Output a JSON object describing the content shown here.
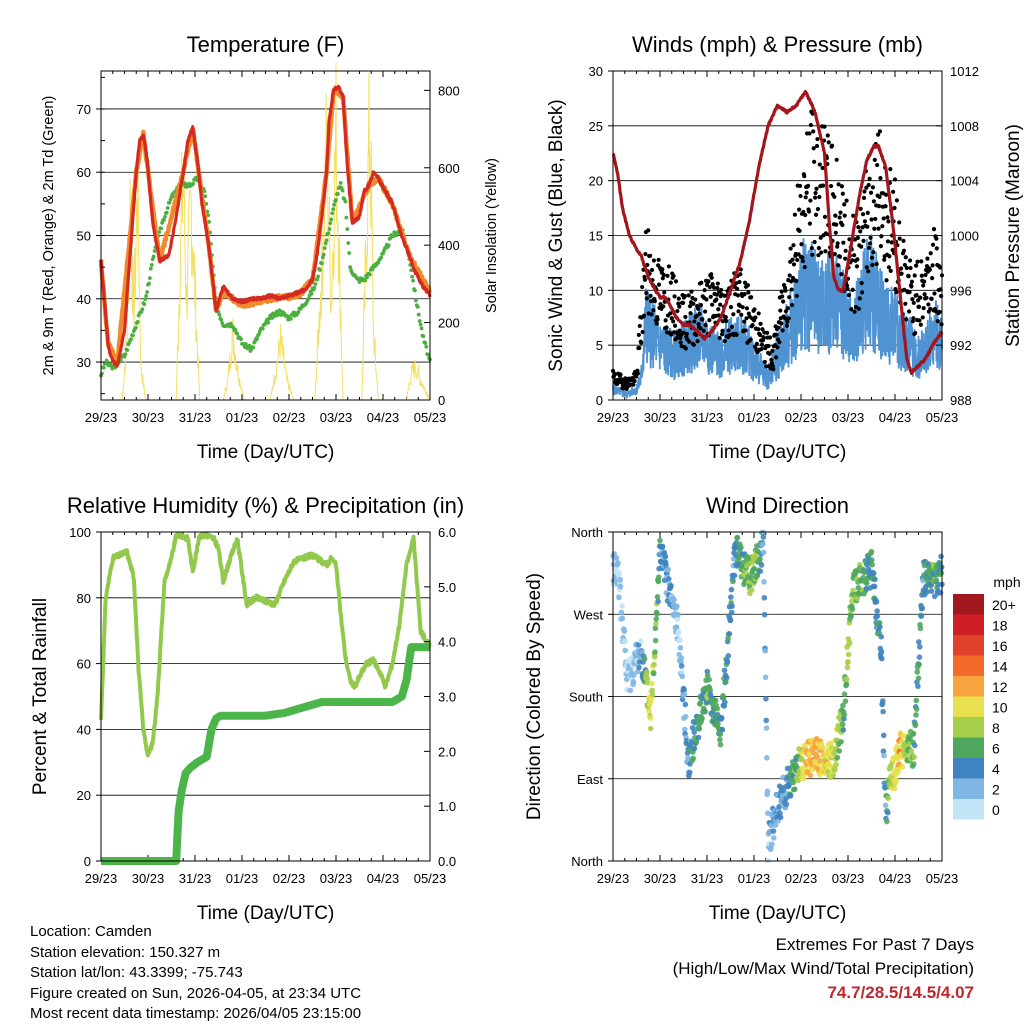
{
  "charts": {
    "temperature": {
      "title": "Temperature (F)",
      "xlabel": "Time (Day/UTC)",
      "ylabel_left": "2m & 9m T (Red, Orange) & 2m Td (Green)",
      "ylabel_right": "Solar Insolation (Yellow)",
      "yticks_left": [
        "30",
        "40",
        "50",
        "60",
        "70"
      ],
      "yticks_right": [
        "0",
        "200",
        "400",
        "600",
        "800"
      ],
      "xticks": [
        "29/23",
        "30/23",
        "31/23",
        "01/23",
        "02/23",
        "03/23",
        "04/23",
        "05/23"
      ]
    },
    "winds": {
      "title": "Winds (mph) & Pressure (mb)",
      "xlabel": "Time (Day/UTC)",
      "ylabel_left": "Sonic Wind & Gust (Blue, Black)",
      "ylabel_right": "Station Pressure (Maroon)",
      "yticks_left": [
        "0",
        "5",
        "10",
        "15",
        "20",
        "25",
        "30"
      ],
      "yticks_right": [
        "988",
        "992",
        "996",
        "1000",
        "1004",
        "1008",
        "1012"
      ],
      "xticks": [
        "29/23",
        "30/23",
        "31/23",
        "01/23",
        "02/23",
        "03/23",
        "04/23",
        "05/23"
      ]
    },
    "humidity": {
      "title": "Relative Humidity (%) & Precipitation (in)",
      "xlabel": "Time (Day/UTC)",
      "ylabel_left": "Percent & Total Rainfall",
      "yticks_left": [
        "0",
        "20",
        "40",
        "60",
        "80",
        "100"
      ],
      "yticks_right": [
        "0.0",
        "1.0",
        "2.0",
        "3.0",
        "4.0",
        "5.0",
        "6.0"
      ],
      "xticks": [
        "29/23",
        "30/23",
        "31/23",
        "01/23",
        "02/23",
        "03/23",
        "04/23",
        "05/23"
      ]
    },
    "direction": {
      "title": "Wind Direction",
      "xlabel": "Time (Day/UTC)",
      "ylabel_left": "Direction (Colored By Speed)",
      "yticks_left": [
        "North",
        "East",
        "South",
        "West",
        "North"
      ],
      "xticks": [
        "29/23",
        "30/23",
        "31/23",
        "01/23",
        "02/23",
        "03/23",
        "04/23",
        "05/23"
      ],
      "legend_title": "mph",
      "legend_labels": [
        "20+",
        "18",
        "16",
        "14",
        "12",
        "10",
        "8",
        "6",
        "4",
        "2",
        "0"
      ],
      "legend_colors": [
        "#a1181e",
        "#cf1f26",
        "#e0412a",
        "#f36b2b",
        "#f8a43f",
        "#e8e04e",
        "#a6cf4b",
        "#4fa75e",
        "#3f84c0",
        "#7fb6e3",
        "#c2e4f6"
      ]
    }
  },
  "colors": {
    "temp2m": "#d42a21",
    "temp9m": "#f08a2d",
    "dewpoint": "#4caf3f",
    "solar": "#f3e061",
    "gust": "#000000",
    "wind": "#4f93d2",
    "pressure": "#a3151c",
    "rh": "#92c94d",
    "precip": "#4cb54a"
  },
  "chart_data": [
    {
      "type": "line",
      "title": "Temperature (F)",
      "x_days": [
        0,
        7
      ],
      "ylim_left": [
        24,
        76
      ],
      "ylim_right": [
        0,
        850
      ],
      "series": [
        {
          "name": "2m T",
          "x": [
            0,
            0.07,
            0.15,
            0.2,
            0.27,
            0.35,
            0.5,
            0.65,
            0.75,
            0.82,
            0.9,
            0.98,
            1.1,
            1.25,
            1.45,
            1.6,
            1.75,
            1.85,
            1.95,
            2.05,
            2.15,
            2.3,
            2.45,
            2.6,
            2.8,
            3.0,
            3.2,
            3.4,
            3.6,
            3.8,
            4.0,
            4.2,
            4.35,
            4.5,
            4.6,
            4.7,
            4.8,
            4.85,
            4.95,
            5.05,
            5.15,
            5.25,
            5.35,
            5.5,
            5.6,
            5.7,
            5.8,
            5.9,
            6.05,
            6.2,
            6.4,
            6.55,
            6.7,
            6.85,
            7.0
          ],
          "values": [
            46,
            40,
            33,
            31,
            30,
            29.5,
            35,
            50,
            60,
            65,
            66,
            62,
            52,
            46,
            47,
            53,
            60,
            65,
            67,
            62,
            55,
            48,
            38,
            42,
            40,
            39.5,
            40,
            40,
            40.5,
            40,
            40.5,
            41,
            41.5,
            43,
            47,
            53,
            60,
            68,
            73,
            73.5,
            72,
            60,
            52,
            53,
            57,
            58,
            60,
            59,
            57,
            55,
            50,
            47,
            44,
            42,
            40.5
          ]
        },
        {
          "name": "9m T",
          "x": [
            0,
            0.15,
            0.35,
            0.75,
            0.9,
            1.25,
            1.75,
            1.95,
            2.3,
            2.45,
            2.6,
            3.0,
            3.6,
            4.2,
            4.5,
            4.8,
            4.95,
            5.15,
            5.35,
            5.7,
            5.9,
            6.2,
            6.55,
            7.0
          ],
          "values": [
            46,
            33,
            30,
            60,
            66,
            46,
            60,
            67,
            48,
            38,
            41,
            39,
            40,
            40.5,
            43,
            60,
            73,
            72,
            52,
            58,
            59,
            55,
            47,
            41
          ]
        },
        {
          "name": "2m Td",
          "x": [
            0,
            0.1,
            0.25,
            0.35,
            0.5,
            0.75,
            0.95,
            1.1,
            1.3,
            1.5,
            1.7,
            1.9,
            2.05,
            2.2,
            2.3,
            2.45,
            2.6,
            2.8,
            3.0,
            3.2,
            3.4,
            3.6,
            3.8,
            4.0,
            4.2,
            4.4,
            4.55,
            4.7,
            4.85,
            5.0,
            5.1,
            5.2,
            5.3,
            5.45,
            5.6,
            5.8,
            6.0,
            6.2,
            6.4,
            6.55,
            6.7,
            6.85,
            7.0
          ],
          "values": [
            28,
            30,
            29,
            30,
            31,
            36,
            40,
            46,
            52,
            56,
            58,
            58,
            59,
            57,
            52,
            39,
            36,
            36,
            33,
            32,
            35,
            37,
            38,
            37,
            38,
            40,
            42,
            46,
            51,
            56,
            58,
            55,
            45,
            43,
            43,
            45,
            47,
            50,
            51,
            47,
            40,
            34,
            30
          ]
        },
        {
          "name": "Solar",
          "x": [
            0,
            0.45,
            0.55,
            0.62,
            0.7,
            0.78,
            0.85,
            0.95,
            1.6,
            1.68,
            1.75,
            1.82,
            1.92,
            2.1,
            2.6,
            2.7,
            2.8,
            2.92,
            3.05,
            3.6,
            3.72,
            3.82,
            3.95,
            4.1,
            4.55,
            4.7,
            4.8,
            4.9,
            5.0,
            5.15,
            5.55,
            5.65,
            5.72,
            5.8,
            5.9,
            6.5,
            6.6,
            6.7,
            6.8,
            7.0
          ],
          "values": [
            0,
            0,
            180,
            600,
            250,
            650,
            100,
            0,
            0,
            400,
            700,
            300,
            600,
            0,
            0,
            60,
            200,
            80,
            0,
            0,
            90,
            180,
            60,
            0,
            0,
            400,
            760,
            300,
            800,
            0,
            0,
            500,
            850,
            200,
            0,
            0,
            80,
            100,
            60,
            0
          ]
        }
      ]
    },
    {
      "type": "scatter",
      "title": "Winds (mph) & Pressure (mb)",
      "x_days": [
        0,
        7
      ],
      "ylim_left": [
        0,
        30
      ],
      "ylim_right": [
        988,
        1012
      ],
      "series": [
        {
          "name": "Pressure",
          "x": [
            0,
            0.1,
            0.2,
            0.35,
            0.5,
            0.6,
            0.75,
            0.9,
            1.0,
            1.1,
            1.2,
            1.35,
            1.5,
            1.65,
            1.8,
            1.95,
            2.1,
            2.3,
            2.5,
            2.7,
            2.9,
            3.1,
            3.3,
            3.5,
            3.7,
            3.9,
            4.0,
            4.1,
            4.3,
            4.5,
            4.6,
            4.7,
            4.8,
            4.9,
            5.05,
            5.25,
            5.4,
            5.55,
            5.65,
            5.8,
            5.95,
            6.1,
            6.25,
            6.35,
            6.5,
            6.65,
            6.8,
            7.0
          ],
          "values": [
            1006,
            1004.5,
            1002,
            1000,
            999,
            998.5,
            997,
            996,
            995.5,
            995.5,
            995,
            994,
            993.5,
            993.5,
            993,
            992.5,
            993,
            994,
            996,
            998,
            1001,
            1005,
            1008,
            1009.5,
            1009,
            1009.5,
            1010,
            1010.5,
            1009,
            1006,
            1001,
            997,
            996,
            996,
            999,
            1003,
            1005.5,
            1006.5,
            1006.5,
            1005,
            1001,
            996,
            991,
            990,
            990.5,
            991,
            992,
            993
          ]
        },
        {
          "name": "Sonic Wind",
          "x": [
            0,
            0.3,
            0.5,
            0.6,
            0.7,
            1.0,
            1.3,
            1.6,
            1.9,
            2.2,
            2.5,
            2.8,
            3.1,
            3.3,
            3.5,
            3.7,
            3.9,
            4.1,
            4.3,
            4.5,
            4.7,
            4.9,
            5.1,
            5.3,
            5.5,
            5.7,
            5.9,
            6.1,
            6.3,
            6.5,
            6.7,
            6.9,
            7.0
          ],
          "values": [
            1,
            0.5,
            1,
            2,
            7,
            5,
            4,
            5,
            6,
            4,
            5,
            5,
            3,
            2,
            4,
            6,
            8,
            10,
            9,
            8,
            10,
            8,
            6,
            9,
            10,
            8,
            7,
            6,
            5,
            4,
            5,
            6,
            5
          ]
        },
        {
          "name": "Gust",
          "x": [
            0,
            0.3,
            0.5,
            0.7,
            0.9,
            1.2,
            1.5,
            1.8,
            2.1,
            2.4,
            2.7,
            3.0,
            3.2,
            3.4,
            3.6,
            3.8,
            4.0,
            4.2,
            4.4,
            4.6,
            4.8,
            5.0,
            5.2,
            5.4,
            5.6,
            5.8,
            6.0,
            6.2,
            6.4,
            6.6,
            6.8,
            7.0
          ],
          "values": [
            2,
            1.5,
            2,
            12,
            10,
            9,
            7,
            8,
            9,
            8,
            9,
            7,
            5,
            4,
            8,
            12,
            16,
            20,
            19,
            18,
            17,
            13,
            12,
            16,
            19,
            17,
            15,
            11,
            9,
            10,
            12,
            10
          ]
        }
      ]
    },
    {
      "type": "line",
      "title": "Relative Humidity (%) & Precipitation (in)",
      "x_days": [
        0,
        7
      ],
      "ylim_left": [
        0,
        100
      ],
      "ylim_right": [
        0,
        6
      ],
      "series": [
        {
          "name": "RH",
          "x": [
            0,
            0.1,
            0.25,
            0.4,
            0.55,
            0.7,
            0.8,
            0.9,
            1.0,
            1.1,
            1.2,
            1.35,
            1.5,
            1.6,
            1.7,
            1.85,
            1.95,
            2.1,
            2.25,
            2.4,
            2.5,
            2.6,
            2.75,
            2.9,
            3.1,
            3.3,
            3.5,
            3.7,
            3.9,
            4.1,
            4.3,
            4.5,
            4.7,
            4.8,
            4.9,
            5.0,
            5.1,
            5.2,
            5.3,
            5.4,
            5.5,
            5.65,
            5.8,
            5.95,
            6.05,
            6.2,
            6.35,
            6.5,
            6.65,
            6.8,
            7.0
          ],
          "values": [
            43,
            80,
            92,
            93,
            94,
            86,
            58,
            40,
            32,
            36,
            50,
            85,
            92,
            99,
            99,
            98,
            88,
            99,
            99,
            98,
            95,
            85,
            92,
            98,
            78,
            80,
            79,
            78,
            85,
            91,
            92,
            93,
            91,
            90,
            92,
            90,
            75,
            62,
            55,
            53,
            56,
            60,
            61,
            57,
            53,
            60,
            72,
            90,
            98,
            70,
            65
          ]
        },
        {
          "name": "Total Precip",
          "x": [
            0,
            1.0,
            1.6,
            1.65,
            1.72,
            1.8,
            1.9,
            2.05,
            2.25,
            2.35,
            2.45,
            2.55,
            2.7,
            3.0,
            3.5,
            3.9,
            4.1,
            4.3,
            4.5,
            4.7,
            4.9,
            5.3,
            5.7,
            6.0,
            6.2,
            6.4,
            6.5,
            6.6,
            7.0
          ],
          "values": [
            0,
            0,
            0,
            0.9,
            1.3,
            1.6,
            1.7,
            1.8,
            1.9,
            2.4,
            2.6,
            2.65,
            2.65,
            2.65,
            2.65,
            2.7,
            2.75,
            2.8,
            2.85,
            2.9,
            2.9,
            2.9,
            2.9,
            2.9,
            2.9,
            3.0,
            3.3,
            3.9,
            3.9
          ]
        }
      ]
    },
    {
      "type": "scatter",
      "title": "Wind Direction",
      "x_days": [
        0,
        7
      ],
      "ylim_left": [
        0,
        360
      ],
      "series": [
        {
          "name": "Wind Direction",
          "x": [
            0.1,
            0.3,
            0.6,
            0.8,
            1.0,
            1.4,
            1.6,
            2.0,
            2.3,
            2.6,
            2.9,
            3.1,
            3.2,
            3.3,
            3.5,
            3.7,
            3.9,
            4.1,
            4.3,
            4.5,
            4.7,
            4.9,
            5.0,
            5.1,
            5.3,
            5.5,
            5.7,
            5.8,
            5.9,
            6.0,
            6.1,
            6.2,
            6.4,
            6.6,
            6.8,
            7.0
          ],
          "values": [
            320,
            200,
            230,
            160,
            340,
            250,
            110,
            190,
            140,
            340,
            310,
            330,
            345,
            20,
            60,
            80,
            100,
            110,
            115,
            110,
            112,
            160,
            230,
            300,
            310,
            320,
            240,
            50,
            90,
            100,
            120,
            125,
            120,
            310,
            305,
            315
          ],
          "speeds": [
            1,
            1,
            2,
            10,
            4,
            1,
            4,
            6,
            5,
            4,
            7,
            6,
            3,
            2,
            3,
            4,
            6,
            11,
            12,
            10,
            9,
            6,
            8,
            7,
            6,
            5,
            4,
            3,
            9,
            10,
            12,
            8,
            6,
            4,
            6,
            5
          ]
        }
      ]
    }
  ],
  "footer": {
    "location": "Location: Camden",
    "elevation": "Station elevation: 150.327 m",
    "latlon": "Station lat/lon: 43.3399; -75.743",
    "created": "Figure created on Sun, 2026-04-05, at 23:34 UTC",
    "recent": "Most recent data timestamp: 2026/04/05 23:15:00"
  },
  "extremes": {
    "title": "Extremes For Past 7 Days",
    "subtitle": "(High/Low/Max Wind/Total Precipitation)",
    "values": "74.7/28.5/14.5/4.07"
  }
}
